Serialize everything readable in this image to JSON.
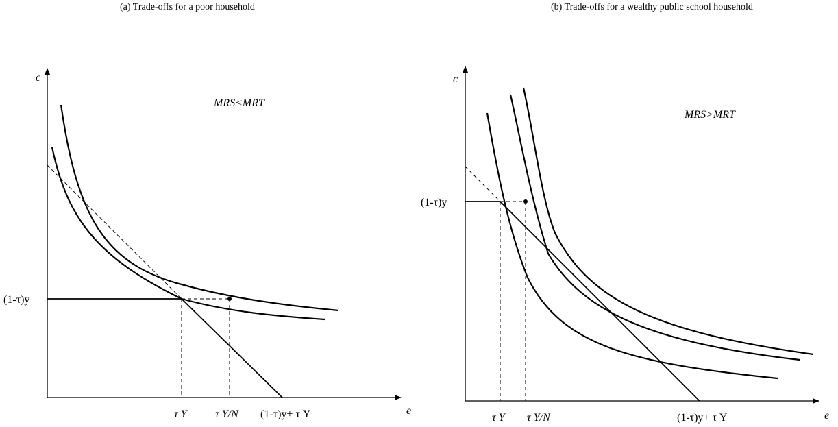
{
  "panel_a": {
    "caption": "(a)  Trade-offs for a poor household",
    "y_axis_label": "c",
    "x_axis_label": "e",
    "mrs_label": "MRS<MRT",
    "y_level_label": "(1-τ)y",
    "x_tick_1": "τ Y",
    "x_tick_2": "τ Y/N",
    "x_tick_3": "(1-τ)y+ τ Y"
  },
  "panel_b": {
    "caption": "(b)  Trade-offs for a wealthy public school household",
    "y_axis_label": "c",
    "x_axis_label": "e",
    "mrs_label": "MRS>MRT",
    "y_level_label": "(1-τ)y",
    "x_tick_1": "τ Y",
    "x_tick_2": "τ Y/N",
    "x_tick_3": "(1-τ)y+ τ Y"
  }
}
